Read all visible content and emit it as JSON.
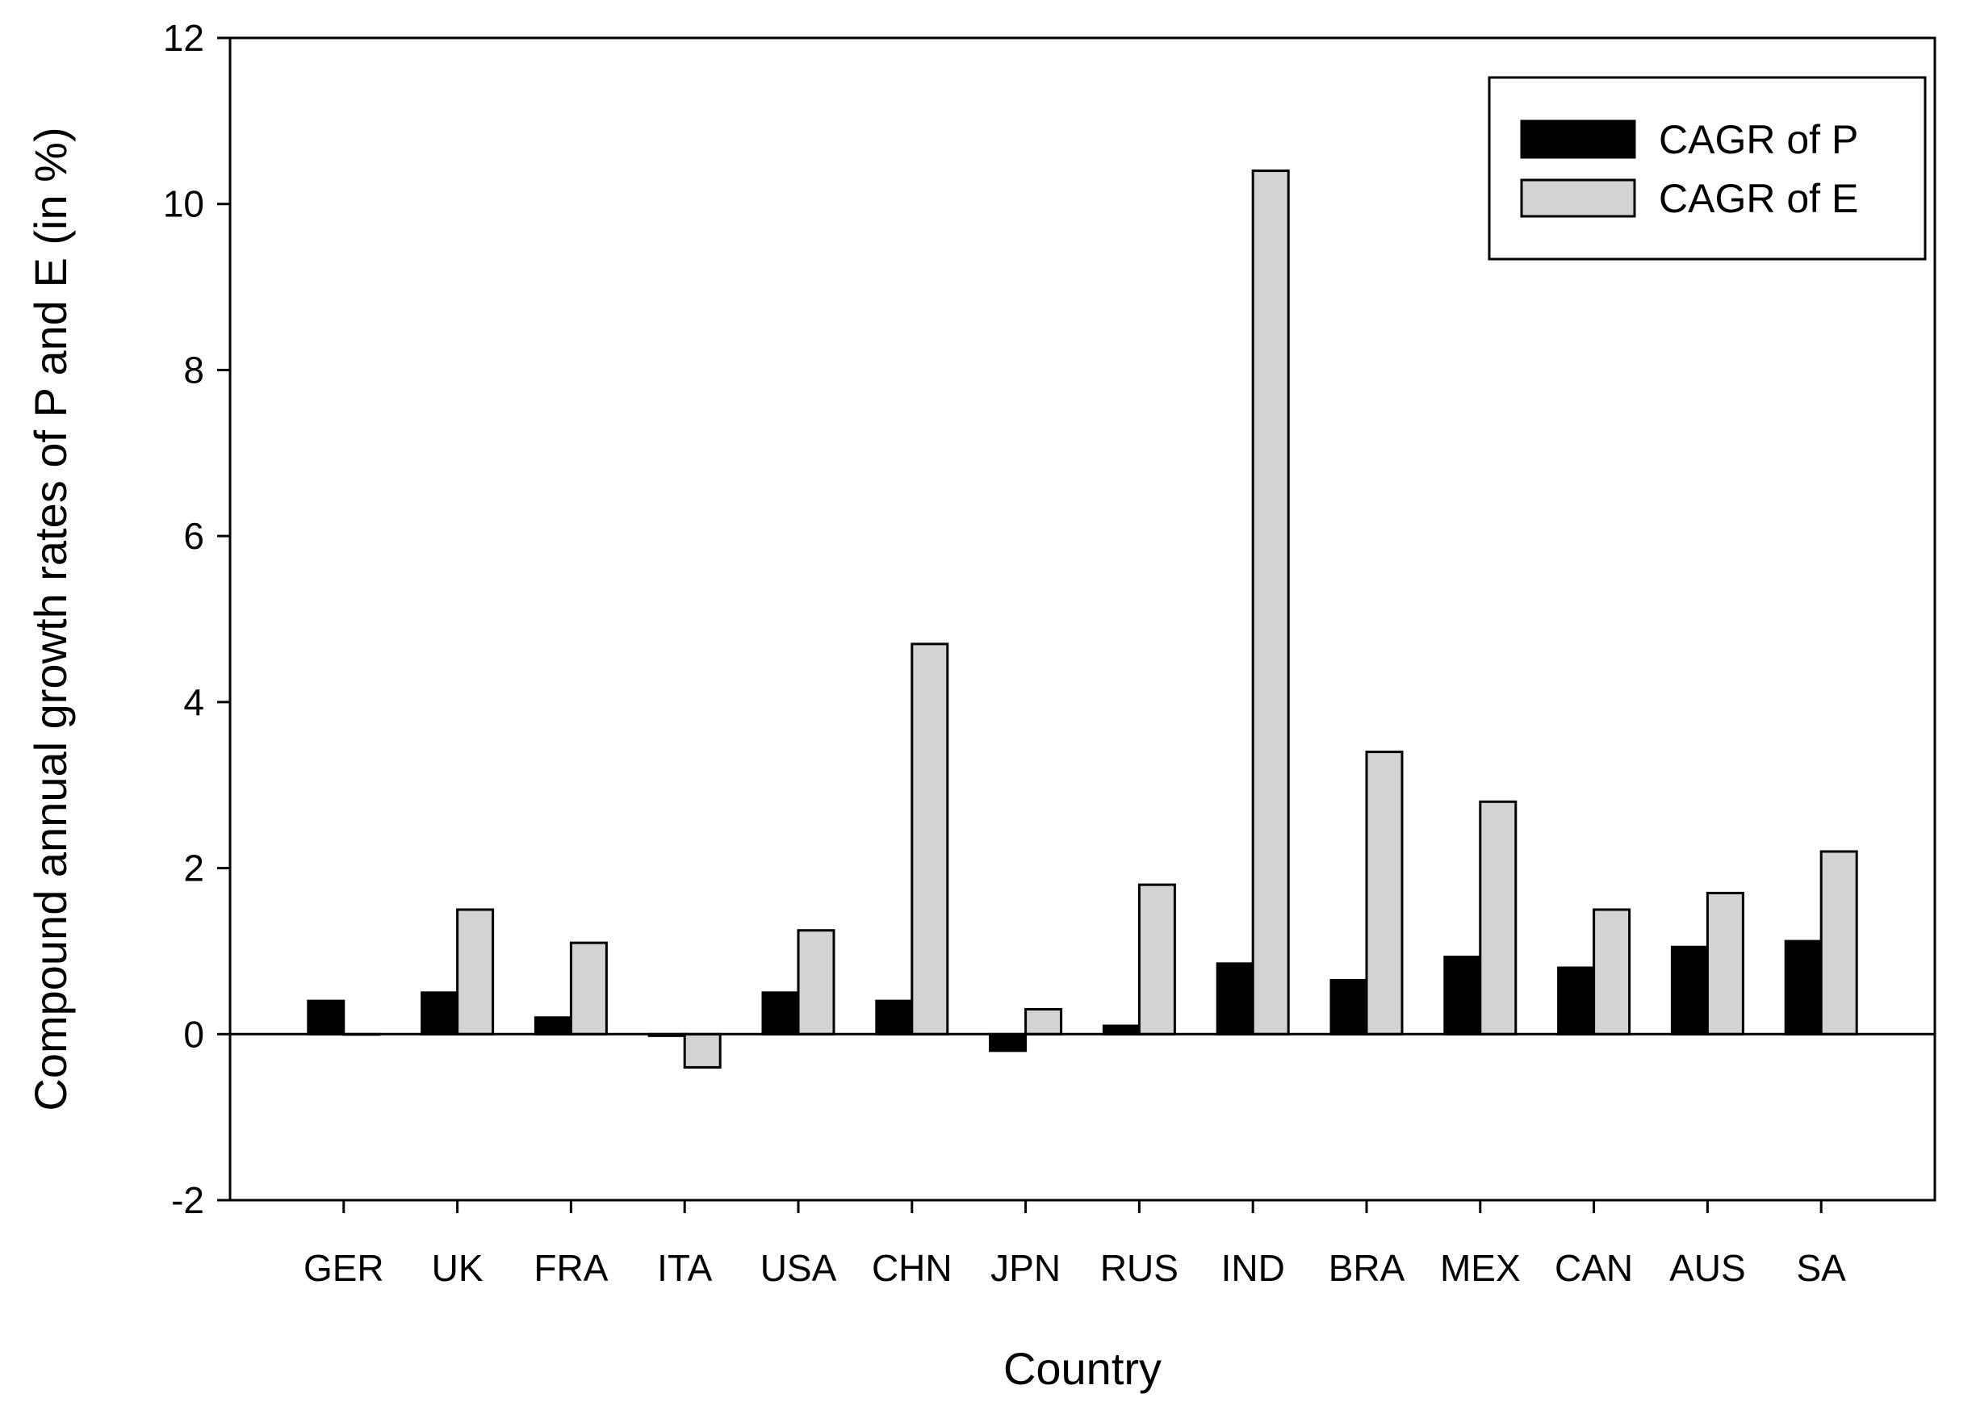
{
  "chart_data": {
    "type": "bar",
    "xlabel": "Country",
    "ylabel": "Compound annual growth rates of P and E (in %)",
    "ylim": [
      -2,
      12
    ],
    "yticks": [
      -2,
      0,
      2,
      4,
      6,
      8,
      10,
      12
    ],
    "grid": false,
    "legend_position": "top-right",
    "categories": [
      "GER",
      "UK",
      "FRA",
      "ITA",
      "USA",
      "CHN",
      "JPN",
      "RUS",
      "IND",
      "BRA",
      "MEX",
      "CAN",
      "AUS",
      "SA"
    ],
    "series": [
      {
        "name": "CAGR of P",
        "color": "#000000",
        "values": [
          0.4,
          0.5,
          0.2,
          -0.02,
          0.5,
          0.4,
          -0.2,
          0.1,
          0.85,
          0.65,
          0.93,
          0.8,
          1.05,
          1.12
        ]
      },
      {
        "name": "CAGR of E",
        "color": "#d3d3d3",
        "values": [
          0.0,
          1.5,
          1.1,
          -0.4,
          1.25,
          4.7,
          0.3,
          1.8,
          10.4,
          3.4,
          2.8,
          1.5,
          1.7,
          2.2
        ]
      }
    ]
  }
}
